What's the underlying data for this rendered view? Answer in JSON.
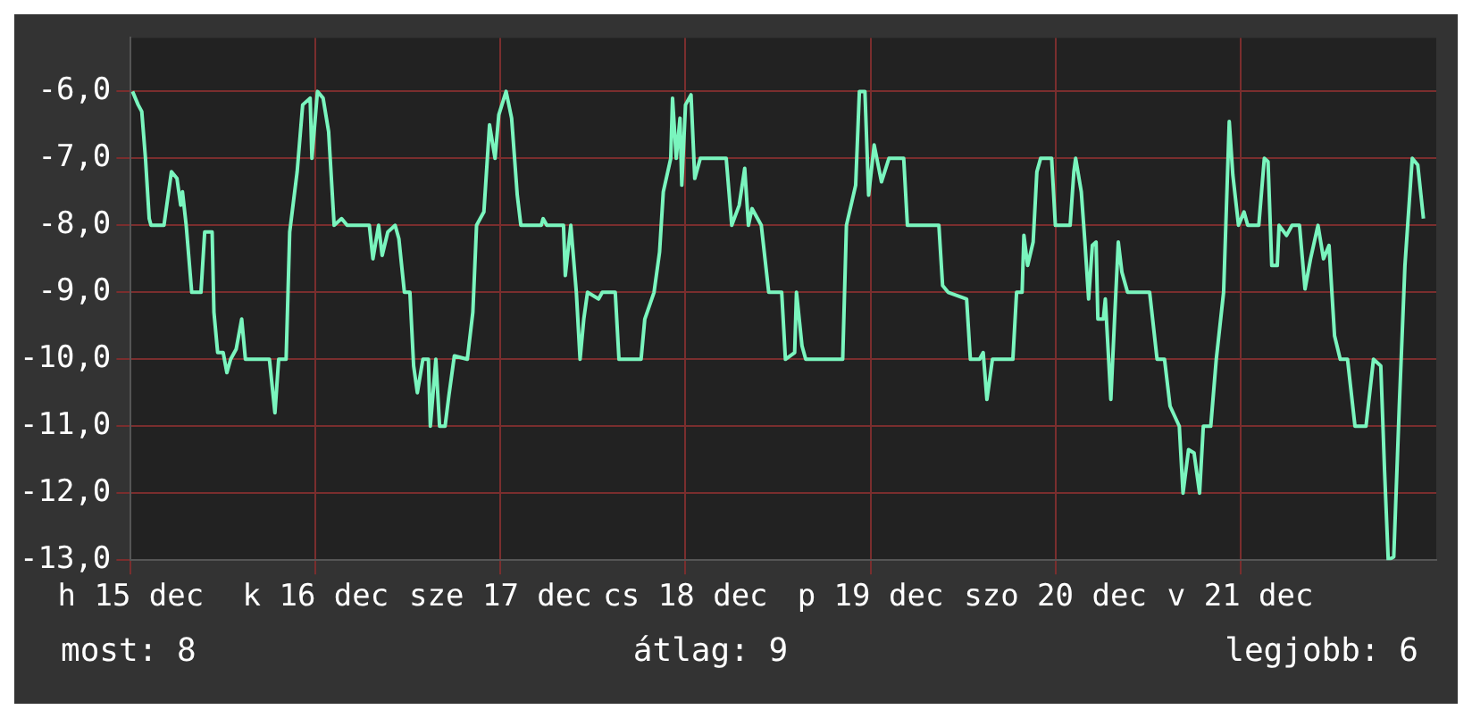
{
  "chart_data": {
    "type": "line",
    "annotations": [
      "most: 8",
      "átlag: 9",
      "legjobb: 6"
    ],
    "xlim": [
      "--12-15",
      "--12-22T01:26"
    ],
    "xticks": [
      {
        "value": "--12-15",
        "label": "h 15 dec"
      },
      {
        "value": "--12-16",
        "label": "k 16 dec"
      },
      {
        "value": "--12-17",
        "label": "sze 17 dec"
      },
      {
        "value": "--12-18",
        "label": "cs 18 dec"
      },
      {
        "value": "--12-19",
        "label": "p 19 dec"
      },
      {
        "value": "--12-20",
        "label": "szo 20 dec"
      },
      {
        "value": "--12-21",
        "label": "v 21 dec"
      }
    ],
    "ylim": [
      -13,
      -5.2
    ],
    "yticks": [
      {
        "value": -13,
        "label": "-13,0"
      },
      {
        "value": -12,
        "label": "-12,0"
      },
      {
        "value": -11,
        "label": "-11,0"
      },
      {
        "value": -10,
        "label": "-10,0"
      },
      {
        "value": -9,
        "label": "-9,0"
      },
      {
        "value": -8,
        "label": "-8,0"
      },
      {
        "value": -7,
        "label": "-7,0"
      },
      {
        "value": -6,
        "label": "-6,0"
      }
    ],
    "grid": true,
    "marker": "none",
    "line_style": "solid",
    "series": [
      {
        "color": "#7af5be",
        "x": [
          "--12-15T00:14",
          "--12-15T00:58",
          "--12-15T01:26",
          "--12-15T01:55",
          "--12-15T02:24",
          "--12-15T02:38",
          "--12-15T04:19",
          "--12-15T05:17",
          "--12-15T06:00",
          "--12-15T06:29",
          "--12-15T06:43",
          "--12-15T07:12",
          "--12-15T07:55",
          "--12-15T09:07",
          "--12-15T09:36",
          "--12-15T10:34",
          "--12-15T10:48",
          "--12-15T11:17",
          "--12-15T12:00",
          "--12-15T12:29",
          "--12-15T12:58",
          "--12-15T13:41",
          "--12-15T14:24",
          "--12-15T14:53",
          "--12-15T18:00",
          "--12-15T18:43",
          "--12-15T19:12",
          "--12-15T20:10",
          "--12-15T20:38",
          "--12-15T21:36",
          "--12-15T22:19",
          "--12-15T23:17",
          "--12-15T23:31",
          "--12-16T00:14",
          "--12-16T00:58",
          "--12-16T01:41",
          "--12-16T02:24",
          "--12-16T03:22",
          "--12-16T04:05",
          "--12-16T06:58",
          "--12-16T07:26",
          "--12-16T08:10",
          "--12-16T08:38",
          "--12-16T09:22",
          "--12-16T10:19",
          "--12-16T10:48",
          "--12-16T11:31",
          "--12-16T12:14",
          "--12-16T12:43",
          "--12-16T13:12",
          "--12-16T13:55",
          "--12-16T14:38",
          "--12-16T14:53",
          "--12-16T15:36",
          "--12-16T16:05",
          "--12-16T16:48",
          "--12-16T17:17",
          "--12-16T18:00",
          "--12-16T19:41",
          "--12-16T20:24",
          "--12-16T20:53",
          "--12-16T21:50",
          "--12-16T22:34",
          "--12-16T23:17",
          "--12-16T23:46",
          "--12-17T00:43",
          "--12-17T01:26",
          "--12-17T02:10",
          "--12-17T02:38",
          "--12-17T05:17",
          "--12-17T05:31",
          "--12-17T06:00",
          "--12-17T08:10",
          "--12-17T08:24",
          "--12-17T09:07",
          "--12-17T09:50",
          "--12-17T10:19",
          "--12-17T10:48",
          "--12-17T11:17",
          "--12-17T12:43",
          "--12-17T13:12",
          "--12-17T14:53",
          "--12-17T15:22",
          "--12-17T18:14",
          "--12-17T18:43",
          "--12-17T19:55",
          "--12-17T20:38",
          "--12-17T21:07",
          "--12-17T22:05",
          "--12-17T22:19",
          "--12-17T22:48",
          "--12-17T23:17",
          "--12-17T23:31",
          "--12-18T00:00",
          "--12-18T00:43",
          "--12-18T01:12",
          "--12-18T01:55",
          "--12-18T05:17",
          "--12-18T06:00",
          "--12-18T06:58",
          "--12-18T07:41",
          "--12-18T08:10",
          "--12-18T08:38",
          "--12-18T09:50",
          "--12-18T10:48",
          "--12-18T12:29",
          "--12-18T12:58",
          "--12-18T14:10",
          "--12-18T14:24",
          "--12-18T15:07",
          "--12-18T15:36",
          "--12-18T20:24",
          "--12-18T20:53",
          "--12-18T22:05",
          "--12-18T22:34",
          "--12-18T23:17",
          "--12-18T23:46",
          "--12-19T00:29",
          "--12-19T01:26",
          "--12-19T02:24",
          "--12-19T04:19",
          "--12-19T04:48",
          "--12-19T08:53",
          "--12-19T09:22",
          "--12-19T10:05",
          "--12-19T12:29",
          "--12-19T12:58",
          "--12-19T14:10",
          "--12-19T14:38",
          "--12-19T15:07",
          "--12-19T15:50",
          "--12-19T18:29",
          "--12-19T18:58",
          "--12-19T19:41",
          "--12-19T19:55",
          "--12-19T20:24",
          "--12-19T21:07",
          "--12-19T21:36",
          "--12-19T22:05",
          "--12-19T23:31",
          "--12-20T00:00",
          "--12-20T01:55",
          "--12-20T02:24",
          "--12-20T02:38",
          "--12-20T03:22",
          "--12-20T03:50",
          "--12-20T04:19",
          "--12-20T04:48",
          "--12-20T05:17",
          "--12-20T05:31",
          "--12-20T06:14",
          "--12-20T06:29",
          "--12-20T07:12",
          "--12-20T07:41",
          "--12-20T08:10",
          "--12-20T08:38",
          "--12-20T09:22",
          "--12-20T12:14",
          "--12-20T13:12",
          "--12-20T14:10",
          "--12-20T14:53",
          "--12-20T16:05",
          "--12-20T16:34",
          "--12-20T17:17",
          "--12-20T18:00",
          "--12-20T18:43",
          "--12-20T19:12",
          "--12-20T20:10",
          "--12-20T20:53",
          "--12-20T21:50",
          "--12-20T22:34",
          "--12-20T23:02",
          "--12-20T23:46",
          "--12-21T00:29",
          "--12-21T00:58",
          "--12-21T02:24",
          "--12-21T03:07",
          "--12-21T03:36",
          "--12-21T04:05",
          "--12-21T04:48",
          "--12-21T05:02",
          "--12-21T06:00",
          "--12-21T06:43",
          "--12-21T07:41",
          "--12-21T08:24",
          "--12-21T09:07",
          "--12-21T10:05",
          "--12-21T10:48",
          "--12-21T11:31",
          "--12-21T12:14",
          "--12-21T12:58",
          "--12-21T13:55",
          "--12-21T14:53",
          "--12-21T16:19",
          "--12-21T17:17",
          "--12-21T18:14",
          "--12-21T18:43",
          "--12-21T19:12",
          "--12-21T19:55",
          "--12-21T20:38",
          "--12-21T21:22",
          "--12-21T22:19",
          "--12-21T23:02",
          "--12-21T23:46"
        ],
        "values": [
          -6,
          -6.2,
          -6.3,
          -7,
          -7.9,
          -8,
          -8,
          -7.2,
          -7.3,
          -7.7,
          -7.5,
          -8,
          -9,
          -9,
          -8.1,
          -8.1,
          -9.3,
          -9.9,
          -9.9,
          -10.2,
          -10,
          -9.85,
          -9.4,
          -10,
          -10,
          -10.8,
          -10,
          -10,
          -8.1,
          -7.2,
          -6.2,
          -6.1,
          -7,
          -6,
          -6.1,
          -6.6,
          -8,
          -7.9,
          -8,
          -8,
          -8.5,
          -8,
          -8.45,
          -8.1,
          -8,
          -8.2,
          -9,
          -9,
          -10.1,
          -10.5,
          -10,
          -10,
          -11,
          -10,
          -11,
          -11,
          -10.55,
          -9.95,
          -10,
          -9.3,
          -8,
          -7.8,
          -6.5,
          -7,
          -6.35,
          -6,
          -6.4,
          -7.55,
          -8,
          -8,
          -7.9,
          -8,
          -8,
          -8.75,
          -8,
          -9,
          -10,
          -9.4,
          -9,
          -9.1,
          -9,
          -9,
          -10,
          -10,
          -9.4,
          -9,
          -8.4,
          -7.5,
          -7,
          -6.1,
          -7,
          -6.4,
          -7.4,
          -6.2,
          -6.05,
          -7.3,
          -7,
          -7,
          -8,
          -7.7,
          -7.15,
          -8,
          -7.75,
          -8,
          -9,
          -9,
          -10,
          -9.9,
          -9,
          -9.8,
          -10,
          -10,
          -8,
          -7.4,
          -6,
          -6,
          -7.55,
          -6.8,
          -7.35,
          -7,
          -7,
          -8,
          -8,
          -8.9,
          -9,
          -9.1,
          -10,
          -10,
          -9.9,
          -10.6,
          -10,
          -10,
          -9,
          -9,
          -8.15,
          -8.6,
          -8.25,
          -7.2,
          -7,
          -7,
          -8,
          -8,
          -7.2,
          -7,
          -7.5,
          -8.25,
          -9.1,
          -8.3,
          -8.25,
          -9.4,
          -9.4,
          -9.1,
          -10.6,
          -9.4,
          -8.25,
          -8.7,
          -9,
          -9,
          -10,
          -10,
          -10.7,
          -11,
          -12,
          -11.35,
          -11.4,
          -12,
          -11,
          -11,
          -10,
          -9,
          -6.45,
          -7.25,
          -8,
          -7.8,
          -8,
          -8,
          -7,
          -7.05,
          -8.6,
          -8.6,
          -8,
          -8.15,
          -8,
          -8,
          -8.95,
          -8.5,
          -8,
          -8.5,
          -8.3,
          -9.65,
          -10,
          -10,
          -11,
          -11,
          -10,
          -10.1,
          -11.65,
          -13,
          -12.95,
          -10.7,
          -8.6,
          -7,
          -7.1,
          -7.9
        ]
      }
    ]
  }
}
